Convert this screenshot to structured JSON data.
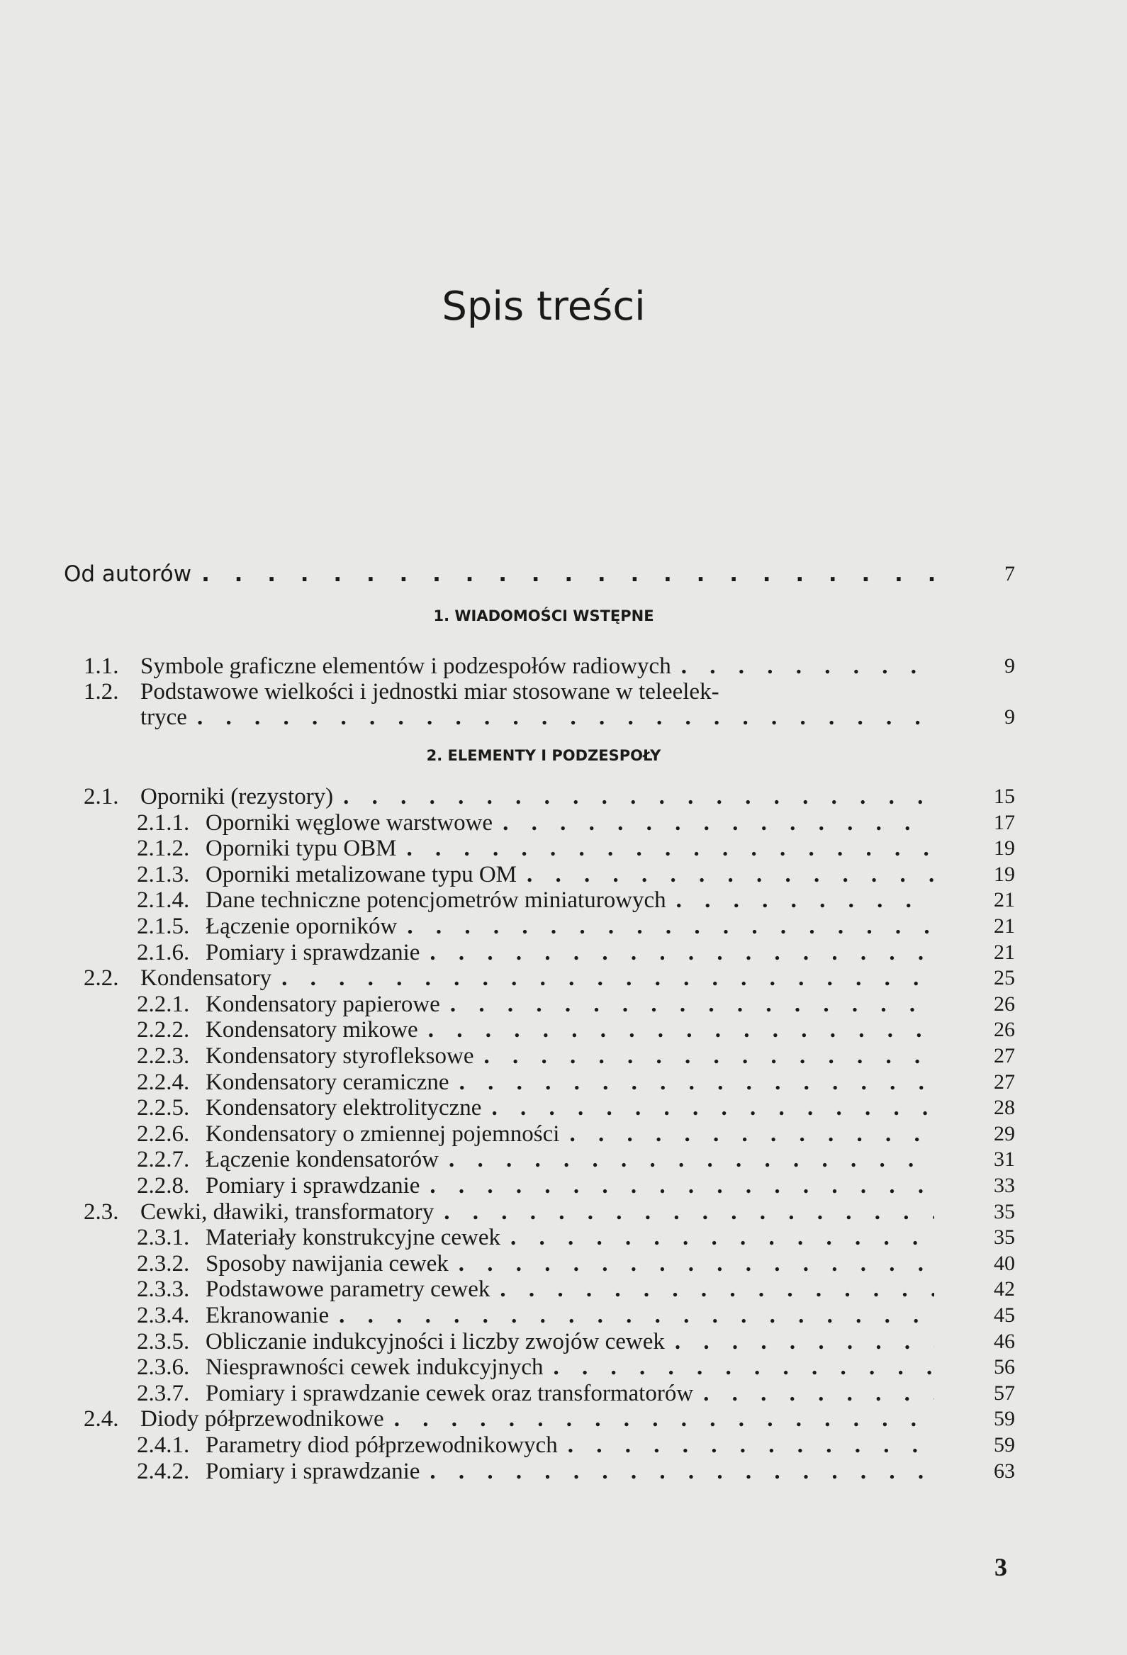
{
  "title": "Spis treści",
  "intro": {
    "label": "Od autorów",
    "page": "7"
  },
  "sections": [
    {
      "heading": "1. WIADOMOŚCI WSTĘPNE",
      "entries": [
        {
          "num": "1.1.",
          "label": "Symbole graficzne elementów i podzespołów radiowych",
          "page": "9",
          "level": 1
        },
        {
          "num": "1.2.",
          "label": "Podstawowe wielkości i jednostki miar stosowane w teleelek-",
          "page": "",
          "level": 1,
          "nodots": true
        },
        {
          "num": "",
          "label": "tryce",
          "page": "9",
          "level": 1
        }
      ]
    },
    {
      "heading": "2. ELEMENTY I PODZESPOŁY",
      "entries": [
        {
          "num": "2.1.",
          "label": "Oporniki (rezystory)",
          "page": "15",
          "level": 1
        },
        {
          "num": "2.1.1.",
          "label": "Oporniki węglowe warstwowe",
          "page": "17",
          "level": 2
        },
        {
          "num": "2.1.2.",
          "label": "Oporniki typu OBM",
          "page": "19",
          "level": 2
        },
        {
          "num": "2.1.3.",
          "label": "Oporniki metalizowane typu OM",
          "page": "19",
          "level": 2
        },
        {
          "num": "2.1.4.",
          "label": "Dane techniczne potencjometrów miniaturowych",
          "page": "21",
          "level": 2
        },
        {
          "num": "2.1.5.",
          "label": "Łączenie oporników",
          "page": "21",
          "level": 2
        },
        {
          "num": "2.1.6.",
          "label": "Pomiary i sprawdzanie",
          "page": "21",
          "level": 2
        },
        {
          "num": "2.2.",
          "label": "Kondensatory",
          "page": "25",
          "level": 1
        },
        {
          "num": "2.2.1.",
          "label": "Kondensatory papierowe",
          "page": "26",
          "level": 2
        },
        {
          "num": "2.2.2.",
          "label": "Kondensatory mikowe",
          "page": "26",
          "level": 2
        },
        {
          "num": "2.2.3.",
          "label": "Kondensatory styrofleksowe",
          "page": "27",
          "level": 2
        },
        {
          "num": "2.2.4.",
          "label": "Kondensatory ceramiczne",
          "page": "27",
          "level": 2
        },
        {
          "num": "2.2.5.",
          "label": "Kondensatory elektrolityczne",
          "page": "28",
          "level": 2
        },
        {
          "num": "2.2.6.",
          "label": "Kondensatory o zmiennej pojemności",
          "page": "29",
          "level": 2
        },
        {
          "num": "2.2.7.",
          "label": "Łączenie kondensatorów",
          "page": "31",
          "level": 2
        },
        {
          "num": "2.2.8.",
          "label": "Pomiary i sprawdzanie",
          "page": "33",
          "level": 2
        },
        {
          "num": "2.3.",
          "label": "Cewki, dławiki, transformatory",
          "page": "35",
          "level": 1
        },
        {
          "num": "2.3.1.",
          "label": "Materiały konstrukcyjne cewek",
          "page": "35",
          "level": 2
        },
        {
          "num": "2.3.2.",
          "label": "Sposoby nawijania cewek",
          "page": "40",
          "level": 2
        },
        {
          "num": "2.3.3.",
          "label": "Podstawowe parametry cewek",
          "page": "42",
          "level": 2
        },
        {
          "num": "2.3.4.",
          "label": "Ekranowanie",
          "page": "45",
          "level": 2
        },
        {
          "num": "2.3.5.",
          "label": "Obliczanie indukcyjności i liczby zwojów cewek",
          "page": "46",
          "level": 2
        },
        {
          "num": "2.3.6.",
          "label": "Niesprawności cewek indukcyjnych",
          "page": "56",
          "level": 2
        },
        {
          "num": "2.3.7.",
          "label": "Pomiary i sprawdzanie cewek oraz transformatorów",
          "page": "57",
          "level": 2
        },
        {
          "num": "2.4.",
          "label": "Diody półprzewodnikowe",
          "page": "59",
          "level": 1
        },
        {
          "num": "2.4.1.",
          "label": "Parametry diod półprzewodnikowych",
          "page": "59",
          "level": 2
        },
        {
          "num": "2.4.2.",
          "label": "Pomiary i sprawdzanie",
          "page": "63",
          "level": 2
        }
      ]
    }
  ],
  "page_number": "3"
}
